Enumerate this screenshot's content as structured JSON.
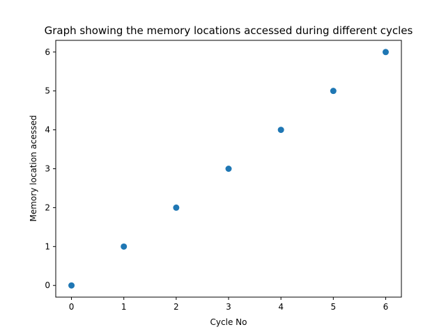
{
  "chart_data": {
    "type": "scatter",
    "title": "Graph showing the memory locations accessed during different cycles",
    "xlabel": "Cycle No",
    "ylabel": "Memory location acessed",
    "x": [
      0,
      1,
      2,
      3,
      4,
      5,
      6
    ],
    "y": [
      0,
      1,
      2,
      3,
      4,
      5,
      6
    ],
    "xlim": [
      -0.3,
      6.3
    ],
    "ylim": [
      -0.3,
      6.3
    ],
    "xticks": [
      0,
      1,
      2,
      3,
      4,
      5,
      6
    ],
    "yticks": [
      0,
      1,
      2,
      3,
      4,
      5,
      6
    ],
    "marker_color": "#1f77b4",
    "grid": false,
    "legend": "none"
  }
}
